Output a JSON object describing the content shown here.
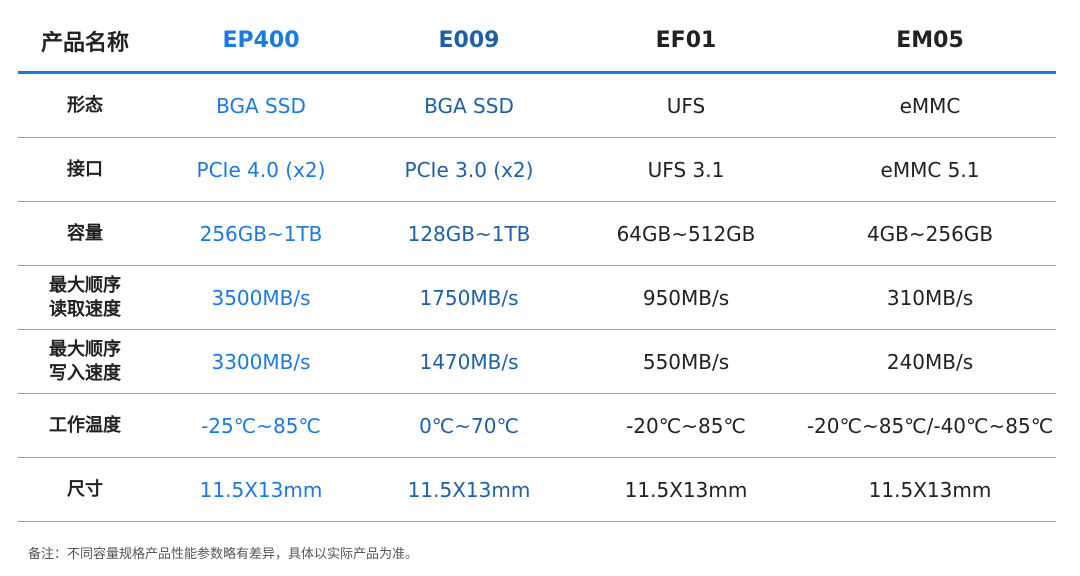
{
  "colors": {
    "ep400": "#1a7ae0",
    "e009": "#1f5fa6",
    "text": "#222222",
    "header_rule": "#1a7ae0"
  },
  "header": [
    "产品名称",
    "EP400",
    "E009",
    "EF01",
    "EM05"
  ],
  "rows": [
    {
      "label": "形态",
      "values": [
        "BGA SSD",
        "BGA SSD",
        "UFS",
        "eMMC"
      ]
    },
    {
      "label": "接口",
      "values": [
        "PCIe 4.0 (x2)",
        "PCIe 3.0 (x2)",
        "UFS 3.1",
        "eMMC 5.1"
      ]
    },
    {
      "label": "容量",
      "values": [
        "256GB~1TB",
        "128GB~1TB",
        "64GB~512GB",
        "4GB~256GB"
      ]
    },
    {
      "label": "最大顺序读取速度",
      "values": [
        "3500MB/s",
        "1750MB/s",
        "950MB/s",
        "310MB/s"
      ]
    },
    {
      "label": "最大顺序写入速度",
      "values": [
        "3300MB/s",
        "1470MB/s",
        "550MB/s",
        "240MB/s"
      ]
    },
    {
      "label": "工作温度",
      "values": [
        "-25℃~85℃",
        "0℃~70℃",
        "-20℃~85℃",
        "-20℃~85℃/-40℃~85℃"
      ]
    },
    {
      "label": "尺寸",
      "values": [
        "11.5X13mm",
        "11.5X13mm",
        "11.5X13mm",
        "11.5X13mm"
      ]
    }
  ],
  "note": "备注：不同容量规格产品性能参数略有差异，具体以实际产品为准。"
}
